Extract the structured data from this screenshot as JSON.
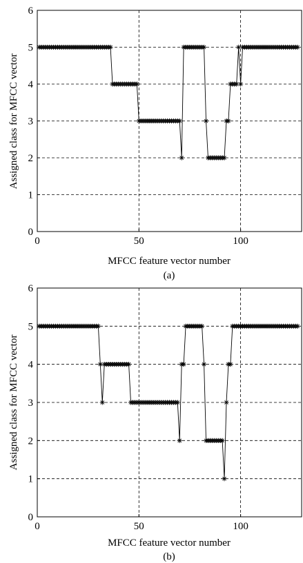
{
  "chart_data": [
    {
      "type": "line",
      "caption": "(a)",
      "xlabel": "MFCC feature vector number",
      "ylabel": "Assigned class for MFCC vector",
      "xlim": [
        0,
        130
      ],
      "ylim": [
        0,
        6
      ],
      "xticks": [
        0,
        50,
        100
      ],
      "yticks": [
        0,
        1,
        2,
        3,
        4,
        5,
        6
      ],
      "grid": true,
      "marker": "asterisk",
      "series": [
        {
          "x": [
            1,
            2,
            3,
            4,
            5,
            6,
            7,
            8,
            9,
            10,
            11,
            12,
            13,
            14,
            15,
            16,
            17,
            18,
            19,
            20,
            21,
            22,
            23,
            24,
            25,
            26,
            27,
            28,
            29,
            30,
            31,
            32,
            33,
            34,
            35,
            36,
            37,
            38,
            39,
            40,
            41,
            42,
            43,
            44,
            45,
            46,
            47,
            48,
            49,
            50,
            51,
            52,
            53,
            54,
            55,
            56,
            57,
            58,
            59,
            60,
            61,
            62,
            63,
            64,
            65,
            66,
            67,
            68,
            69,
            70,
            71,
            72,
            73,
            74,
            75,
            76,
            77,
            78,
            79,
            80,
            81,
            82,
            83,
            84,
            85,
            86,
            87,
            88,
            89,
            90,
            91,
            92,
            93,
            94,
            95,
            96,
            97,
            98,
            99,
            100,
            101,
            102,
            103,
            104,
            105,
            106,
            107,
            108,
            109,
            110,
            111,
            112,
            113,
            114,
            115,
            116,
            117,
            118,
            119,
            120,
            121,
            122,
            123,
            124,
            125,
            126,
            127,
            128
          ],
          "values": [
            5,
            5,
            5,
            5,
            5,
            5,
            5,
            5,
            5,
            5,
            5,
            5,
            5,
            5,
            5,
            5,
            5,
            5,
            5,
            5,
            5,
            5,
            5,
            5,
            5,
            5,
            5,
            5,
            5,
            5,
            5,
            5,
            5,
            5,
            5,
            5,
            4,
            4,
            4,
            4,
            4,
            4,
            4,
            4,
            4,
            4,
            4,
            4,
            4,
            3,
            3,
            3,
            3,
            3,
            3,
            3,
            3,
            3,
            3,
            3,
            3,
            3,
            3,
            3,
            3,
            3,
            3,
            3,
            3,
            3,
            2,
            5,
            5,
            5,
            5,
            5,
            5,
            5,
            5,
            5,
            5,
            5,
            3,
            2,
            2,
            2,
            2,
            2,
            2,
            2,
            2,
            2,
            3,
            3,
            4,
            4,
            4,
            4,
            5,
            4,
            5,
            5,
            5,
            5,
            5,
            5,
            5,
            5,
            5,
            5,
            5,
            5,
            5,
            5,
            5,
            5,
            5,
            5,
            5,
            5,
            5,
            5,
            5,
            5,
            5,
            5,
            5,
            5
          ]
        }
      ]
    },
    {
      "type": "line",
      "caption": "(b)",
      "xlabel": "MFCC feature vector number",
      "ylabel": "Assigned class for MFCC vector",
      "xlim": [
        0,
        130
      ],
      "ylim": [
        0,
        6
      ],
      "xticks": [
        0,
        50,
        100
      ],
      "yticks": [
        0,
        1,
        2,
        3,
        4,
        5,
        6
      ],
      "grid": true,
      "marker": "asterisk",
      "series": [
        {
          "x": [
            1,
            2,
            3,
            4,
            5,
            6,
            7,
            8,
            9,
            10,
            11,
            12,
            13,
            14,
            15,
            16,
            17,
            18,
            19,
            20,
            21,
            22,
            23,
            24,
            25,
            26,
            27,
            28,
            29,
            30,
            31,
            32,
            33,
            34,
            35,
            36,
            37,
            38,
            39,
            40,
            41,
            42,
            43,
            44,
            45,
            46,
            47,
            48,
            49,
            50,
            51,
            52,
            53,
            54,
            55,
            56,
            57,
            58,
            59,
            60,
            61,
            62,
            63,
            64,
            65,
            66,
            67,
            68,
            69,
            70,
            71,
            72,
            73,
            74,
            75,
            76,
            77,
            78,
            79,
            80,
            81,
            82,
            83,
            84,
            85,
            86,
            87,
            88,
            89,
            90,
            91,
            92,
            93,
            94,
            95,
            96,
            97,
            98,
            99,
            100,
            101,
            102,
            103,
            104,
            105,
            106,
            107,
            108,
            109,
            110,
            111,
            112,
            113,
            114,
            115,
            116,
            117,
            118,
            119,
            120,
            121,
            122,
            123,
            124,
            125,
            126,
            127,
            128
          ],
          "values": [
            5,
            5,
            5,
            5,
            5,
            5,
            5,
            5,
            5,
            5,
            5,
            5,
            5,
            5,
            5,
            5,
            5,
            5,
            5,
            5,
            5,
            5,
            5,
            5,
            5,
            5,
            5,
            5,
            5,
            5,
            4,
            3,
            4,
            4,
            4,
            4,
            4,
            4,
            4,
            4,
            4,
            4,
            4,
            4,
            4,
            3,
            3,
            3,
            3,
            3,
            3,
            3,
            3,
            3,
            3,
            3,
            3,
            3,
            3,
            3,
            3,
            3,
            3,
            3,
            3,
            3,
            3,
            3,
            3,
            2,
            4,
            4,
            5,
            5,
            5,
            5,
            5,
            5,
            5,
            5,
            5,
            4,
            2,
            2,
            2,
            2,
            2,
            2,
            2,
            2,
            2,
            1,
            3,
            4,
            4,
            5,
            5,
            5,
            5,
            5,
            5,
            5,
            5,
            5,
            5,
            5,
            5,
            5,
            5,
            5,
            5,
            5,
            5,
            5,
            5,
            5,
            5,
            5,
            5,
            5,
            5,
            5,
            5,
            5,
            5,
            5,
            5,
            5
          ]
        }
      ]
    }
  ]
}
